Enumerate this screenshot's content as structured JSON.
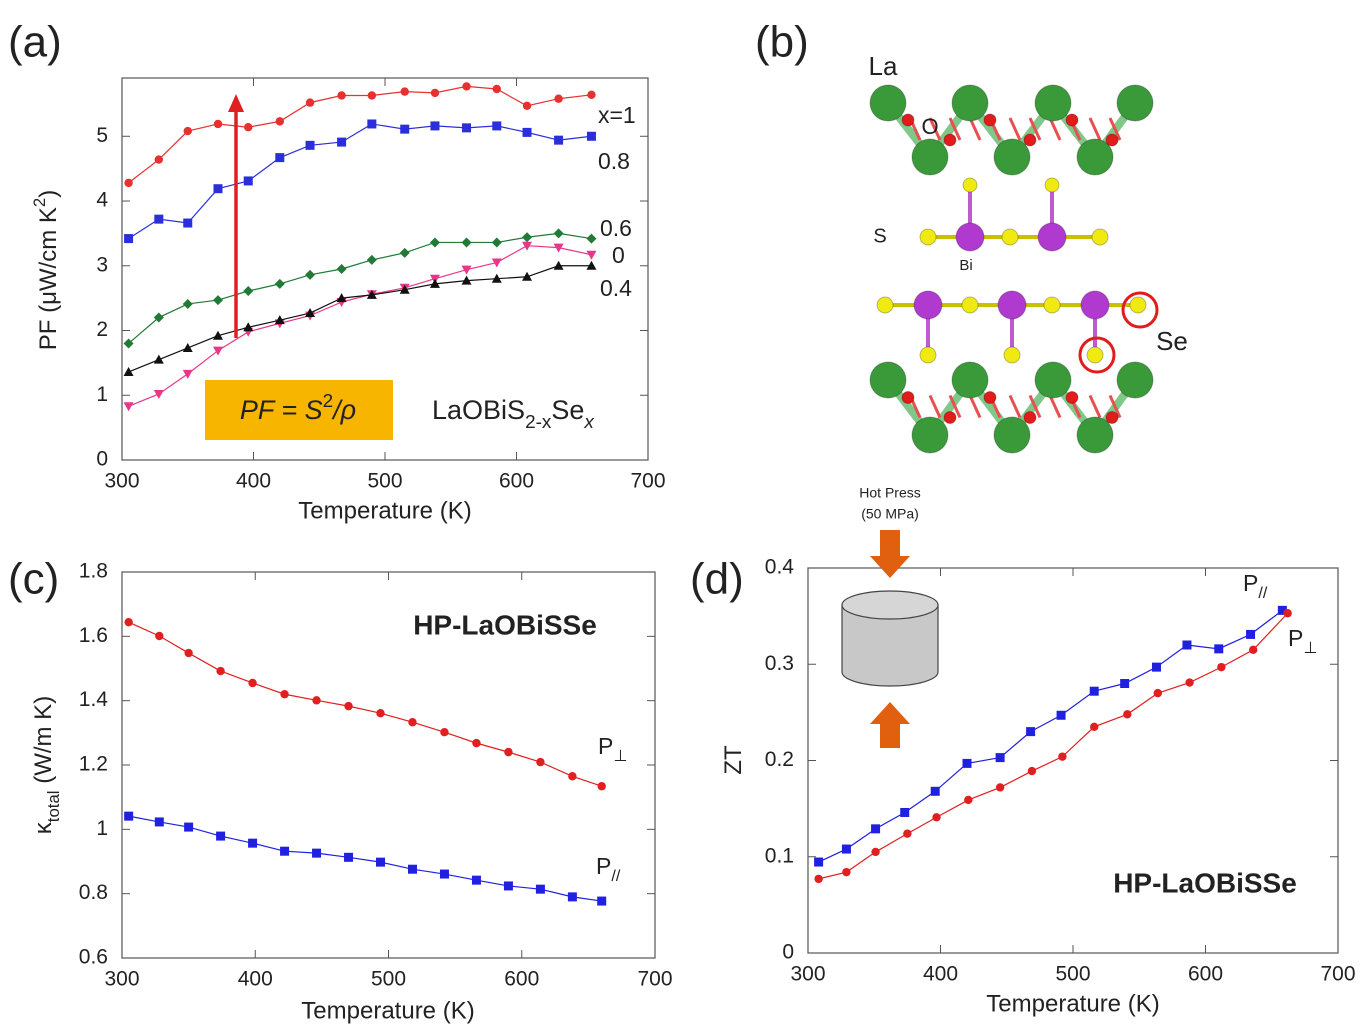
{
  "chart_data": [
    {
      "type": "line",
      "panel": "(a)",
      "xlabel": "Temperature (K)",
      "ylabel": [
        {
          "text": "PF (μW/cm K"
        },
        {
          "text": "2",
          "style": "super"
        },
        {
          "text": ")"
        }
      ],
      "xlim": [
        300,
        700
      ],
      "xticks": [
        300,
        400,
        500,
        600,
        700
      ],
      "ylim": [
        0,
        5.9
      ],
      "yticks": [
        0,
        1,
        2,
        3,
        4,
        5
      ],
      "annotations": [
        [
          {
            "text": "PF = S",
            "style": "italic"
          },
          {
            "text": "2",
            "style": "super"
          },
          {
            "text": "/ρ",
            "style": "italic"
          }
        ],
        [
          {
            "text": "LaOBiS"
          },
          {
            "text": "2-x",
            "style": "sub"
          },
          {
            "text": "Se"
          },
          {
            "text": "x",
            "style": "sub-italic"
          }
        ]
      ],
      "series": [
        {
          "name": [
            {
              "text": "x=1"
            }
          ],
          "color": "#e8302f",
          "marker": "circle",
          "x": [
            305,
            328,
            350,
            373,
            396,
            420,
            443,
            467,
            490,
            515,
            538,
            562,
            585,
            608,
            632,
            657
          ],
          "values": [
            4.28,
            4.64,
            5.08,
            5.19,
            5.14,
            5.23,
            5.52,
            5.63,
            5.63,
            5.69,
            5.67,
            5.77,
            5.73,
            5.47,
            5.58,
            5.64
          ]
        },
        {
          "name": [
            {
              "text": "0.8"
            }
          ],
          "color": "#2a2fd9",
          "marker": "square",
          "x": [
            305,
            328,
            350,
            373,
            396,
            420,
            443,
            467,
            490,
            515,
            538,
            562,
            585,
            608,
            632,
            657
          ],
          "values": [
            3.42,
            3.72,
            3.66,
            4.19,
            4.31,
            4.67,
            4.86,
            4.91,
            5.19,
            5.11,
            5.16,
            5.13,
            5.16,
            5.06,
            4.94,
            5.0
          ]
        },
        {
          "name": [
            {
              "text": "0.6"
            }
          ],
          "color": "#217a35",
          "marker": "diamond",
          "x": [
            305,
            328,
            350,
            373,
            396,
            420,
            443,
            467,
            490,
            515,
            538,
            562,
            585,
            608,
            632,
            657
          ],
          "values": [
            1.8,
            2.2,
            2.41,
            2.47,
            2.61,
            2.72,
            2.86,
            2.95,
            3.09,
            3.2,
            3.36,
            3.36,
            3.36,
            3.44,
            3.5,
            3.42
          ]
        },
        {
          "name": [
            {
              "text": "0"
            }
          ],
          "color": "#e8378a",
          "marker": "triangle-down",
          "x": [
            305,
            328,
            350,
            373,
            396,
            420,
            443,
            467,
            490,
            515,
            538,
            562,
            585,
            608,
            632,
            657
          ],
          "values": [
            0.83,
            1.02,
            1.33,
            1.69,
            1.98,
            2.11,
            2.23,
            2.44,
            2.56,
            2.66,
            2.8,
            2.94,
            3.05,
            3.31,
            3.28,
            3.17
          ]
        },
        {
          "name": [
            {
              "text": "0.4"
            }
          ],
          "color": "#111111",
          "marker": "triangle",
          "x": [
            305,
            328,
            350,
            373,
            396,
            420,
            443,
            467,
            490,
            515,
            538,
            562,
            585,
            608,
            632,
            657
          ],
          "values": [
            1.36,
            1.55,
            1.73,
            1.92,
            2.05,
            2.16,
            2.27,
            2.5,
            2.55,
            2.63,
            2.72,
            2.77,
            2.8,
            2.83,
            3.0,
            3.0
          ]
        }
      ]
    },
    {
      "type": "line",
      "panel": "(c)",
      "title": "HP-LaOBiSSe",
      "xlabel": "Temperature (K)",
      "ylabel": [
        {
          "text": "κ"
        },
        {
          "text": "total",
          "style": "sub"
        },
        {
          "text": " (W/m K)"
        }
      ],
      "xlim": [
        300,
        700
      ],
      "xticks": [
        300,
        400,
        500,
        600,
        700
      ],
      "ylim": [
        0.6,
        1.8
      ],
      "yticks": [
        0.6,
        0.8,
        1,
        1.2,
        1.4,
        1.6,
        1.8
      ],
      "series": [
        {
          "name": [
            {
              "text": "P"
            },
            {
              "text": "⊥",
              "style": "sub"
            }
          ],
          "color": "#e02020",
          "marker": "circle",
          "x": [
            305,
            328,
            350,
            374,
            398,
            422,
            446,
            470,
            494,
            518,
            542,
            566,
            590,
            614,
            638,
            660
          ],
          "values": [
            1.644,
            1.601,
            1.548,
            1.492,
            1.455,
            1.42,
            1.401,
            1.383,
            1.361,
            1.333,
            1.302,
            1.268,
            1.24,
            1.209,
            1.165,
            1.134
          ]
        },
        {
          "name": [
            {
              "text": "P"
            },
            {
              "text": "//",
              "style": "sub"
            }
          ],
          "color": "#2020e0",
          "marker": "square",
          "x": [
            305,
            328,
            350,
            374,
            398,
            422,
            446,
            470,
            494,
            518,
            542,
            566,
            590,
            614,
            638,
            660
          ],
          "values": [
            1.041,
            1.023,
            1.007,
            0.979,
            0.957,
            0.932,
            0.926,
            0.913,
            0.898,
            0.876,
            0.861,
            0.842,
            0.824,
            0.814,
            0.79,
            0.777
          ]
        }
      ]
    },
    {
      "type": "line",
      "panel": "(d)",
      "title": "HP-LaOBiSSe",
      "xlabel": "Temperature (K)",
      "ylabel": [
        {
          "text": "ZT"
        }
      ],
      "xlim": [
        300,
        700
      ],
      "xticks": [
        300,
        400,
        500,
        600,
        700
      ],
      "ylim": [
        0,
        0.4
      ],
      "yticks": [
        0,
        0.1,
        0.2,
        0.3,
        0.4
      ],
      "annotations": [
        [
          {
            "text": "Hot Press"
          }
        ],
        [
          {
            "text": "(50 MPa)"
          }
        ]
      ],
      "series": [
        {
          "name": [
            {
              "text": "P"
            },
            {
              "text": "//",
              "style": "sub"
            }
          ],
          "color": "#2020e0",
          "marker": "square",
          "x": [
            308,
            329,
            351,
            373,
            396,
            420,
            445,
            468,
            491,
            516,
            539,
            563,
            586,
            610,
            634,
            658
          ],
          "values": [
            0.0945,
            0.108,
            0.129,
            0.146,
            0.168,
            0.197,
            0.203,
            0.23,
            0.247,
            0.272,
            0.28,
            0.297,
            0.32,
            0.316,
            0.331,
            0.356
          ]
        },
        {
          "name": [
            {
              "text": "P"
            },
            {
              "text": "⊥",
              "style": "sub"
            }
          ],
          "color": "#e02020",
          "marker": "circle",
          "x": [
            308,
            329,
            351,
            375,
            397,
            421,
            445,
            469,
            492,
            516,
            541,
            564,
            588,
            612,
            636,
            662
          ],
          "values": [
            0.077,
            0.084,
            0.105,
            0.124,
            0.141,
            0.159,
            0.172,
            0.189,
            0.204,
            0.235,
            0.248,
            0.27,
            0.281,
            0.297,
            0.315,
            0.353
          ]
        }
      ]
    }
  ],
  "structure": {
    "panel": "(b)",
    "labels": [
      "La",
      "O",
      "S",
      "Bi",
      "Se"
    ]
  }
}
